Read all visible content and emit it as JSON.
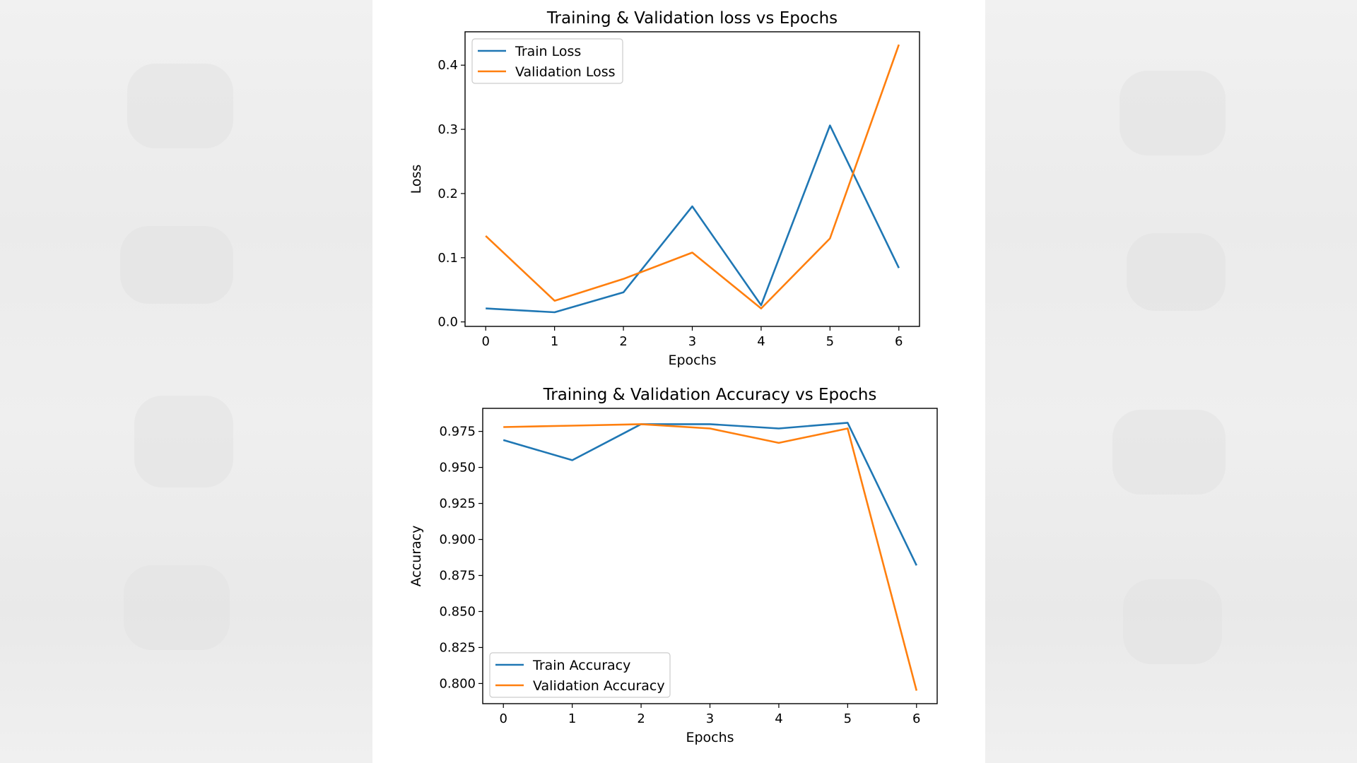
{
  "chart_data": [
    {
      "type": "line",
      "title": "Training & Validation loss vs Epochs",
      "xlabel": "Epochs",
      "ylabel": "Loss",
      "x": [
        0,
        1,
        2,
        3,
        4,
        5,
        6
      ],
      "xticks": [
        "0",
        "1",
        "2",
        "3",
        "4",
        "5",
        "6"
      ],
      "xlim": [
        -0.3,
        6.3
      ],
      "ylim": [
        -0.007,
        0.452
      ],
      "yticks": [
        "0.0",
        "0.1",
        "0.2",
        "0.3",
        "0.4"
      ],
      "ytick_values": [
        0.0,
        0.1,
        0.2,
        0.3,
        0.4
      ],
      "legend": "top-left",
      "grid": false,
      "series": [
        {
          "name": "Train Loss",
          "color": "#1f77b4",
          "values": [
            0.021,
            0.015,
            0.046,
            0.18,
            0.026,
            0.306,
            0.084
          ]
        },
        {
          "name": "Validation Loss",
          "color": "#ff7f0e",
          "values": [
            0.134,
            0.033,
            0.067,
            0.108,
            0.021,
            0.13,
            0.432
          ]
        }
      ]
    },
    {
      "type": "line",
      "title": "Training & Validation Accuracy vs Epochs",
      "xlabel": "Epochs",
      "ylabel": "Accuracy",
      "x": [
        0,
        1,
        2,
        3,
        4,
        5,
        6
      ],
      "xticks": [
        "0",
        "1",
        "2",
        "3",
        "4",
        "5",
        "6"
      ],
      "xlim": [
        -0.3,
        6.3
      ],
      "ylim": [
        0.786,
        0.991
      ],
      "yticks": [
        "0.800",
        "0.825",
        "0.850",
        "0.875",
        "0.900",
        "0.925",
        "0.950",
        "0.975"
      ],
      "ytick_values": [
        0.8,
        0.825,
        0.85,
        0.875,
        0.9,
        0.925,
        0.95,
        0.975
      ],
      "legend": "bottom-left",
      "grid": false,
      "series": [
        {
          "name": "Train Accuracy",
          "color": "#1f77b4",
          "values": [
            0.969,
            0.955,
            0.98,
            0.98,
            0.977,
            0.981,
            0.882
          ]
        },
        {
          "name": "Validation Accuracy",
          "color": "#ff7f0e",
          "values": [
            0.978,
            0.979,
            0.98,
            0.977,
            0.967,
            0.977,
            0.795
          ]
        }
      ]
    }
  ]
}
